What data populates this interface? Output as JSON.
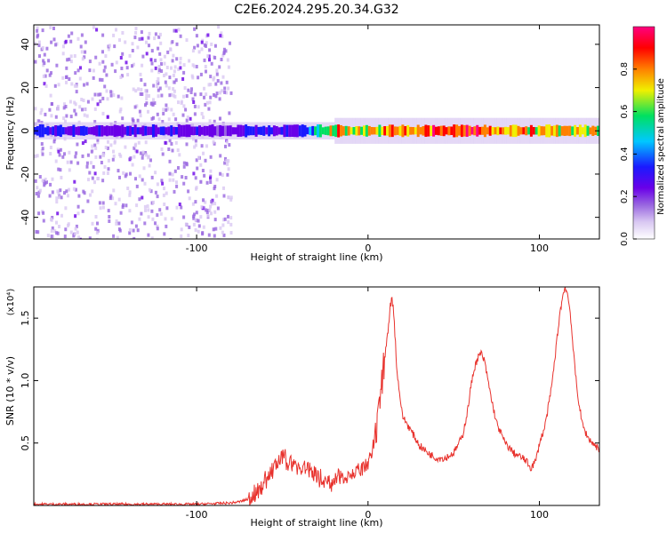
{
  "title": "C2E6.2024.295.20.34.G32",
  "colors": {
    "snr_line": "#e8322d",
    "background": "#ffffff",
    "axes": "#000000",
    "colormap": [
      "#ffffff",
      "#d9c8f2",
      "#9966e0",
      "#6a00e8",
      "#1a1aff",
      "#00c8ff",
      "#00e060",
      "#f0f000",
      "#ff8000",
      "#ff0000",
      "#ff0080"
    ]
  },
  "chart_data": [
    {
      "type": "heatmap",
      "xlabel": "Height of straight line (km)",
      "ylabel": "Frequency (Hz)",
      "xlim": [
        -195,
        135
      ],
      "ylim": [
        -50,
        49
      ],
      "x_ticks": [
        -100,
        0,
        100
      ],
      "y_ticks": [
        -40,
        -20,
        0,
        20,
        40
      ],
      "colorbar": {
        "label": "Normalized spectral amplitude",
        "range": [
          0,
          1
        ],
        "ticks": [
          "0.0",
          "0.2",
          "0.4",
          "0.6",
          "0.8"
        ]
      },
      "dominant_frequency_hz": 0,
      "band_intensity_profile": [
        {
          "x": -195,
          "level": 0.4
        },
        {
          "x": -150,
          "level": 0.35
        },
        {
          "x": -100,
          "level": 0.35
        },
        {
          "x": -85,
          "level": 0.3
        },
        {
          "x": -60,
          "level": 0.4
        },
        {
          "x": -40,
          "level": 0.35
        },
        {
          "x": -20,
          "level": 0.85
        },
        {
          "x": 0,
          "level": 0.75
        },
        {
          "x": 20,
          "level": 0.85
        },
        {
          "x": 40,
          "level": 0.9
        },
        {
          "x": 60,
          "level": 0.95
        },
        {
          "x": 80,
          "level": 0.85
        },
        {
          "x": 100,
          "level": 0.8
        },
        {
          "x": 135,
          "level": 0.75
        }
      ]
    },
    {
      "type": "line",
      "xlabel": "Height of straight line (km)",
      "ylabel": "SNR (10 * v/v)",
      "y_scale_label": "(x10⁴)",
      "xlim": [
        -195,
        135
      ],
      "ylim": [
        0,
        1.75
      ],
      "x_ticks": [
        -100,
        0,
        100
      ],
      "y_ticks": [
        0.5,
        1.0,
        1.5
      ],
      "series": [
        {
          "x": [
            -195,
            -180,
            -160,
            -140,
            -120,
            -100,
            -90,
            -80,
            -75,
            -70,
            -65,
            -60,
            -55,
            -50,
            -45,
            -40,
            -35,
            -30,
            -25,
            -20,
            -15,
            -10,
            -5,
            0,
            3,
            5,
            8,
            10,
            12,
            13,
            14,
            15,
            16,
            17,
            18,
            20,
            25,
            30,
            35,
            40,
            45,
            50,
            55,
            58,
            60,
            62,
            64,
            66,
            68,
            70,
            72,
            75,
            80,
            85,
            90,
            92,
            95,
            98,
            100,
            103,
            106,
            108,
            110,
            112,
            114,
            115,
            116,
            118,
            120,
            122,
            125,
            128,
            131,
            135
          ],
          "y": [
            0.01,
            0.01,
            0.01,
            0.01,
            0.01,
            0.01,
            0.015,
            0.02,
            0.03,
            0.05,
            0.1,
            0.2,
            0.3,
            0.38,
            0.35,
            0.3,
            0.3,
            0.25,
            0.18,
            0.2,
            0.24,
            0.25,
            0.27,
            0.33,
            0.45,
            0.6,
            0.95,
            1.2,
            1.45,
            1.6,
            1.66,
            1.55,
            1.3,
            1.05,
            0.95,
            0.72,
            0.6,
            0.48,
            0.42,
            0.38,
            0.38,
            0.42,
            0.55,
            0.75,
            0.95,
            1.1,
            1.18,
            1.22,
            1.15,
            1.0,
            0.85,
            0.66,
            0.5,
            0.42,
            0.38,
            0.36,
            0.3,
            0.36,
            0.5,
            0.62,
            0.85,
            1.05,
            1.3,
            1.55,
            1.7,
            1.75,
            1.72,
            1.55,
            1.2,
            0.92,
            0.65,
            0.55,
            0.5,
            0.45
          ]
        }
      ]
    }
  ]
}
